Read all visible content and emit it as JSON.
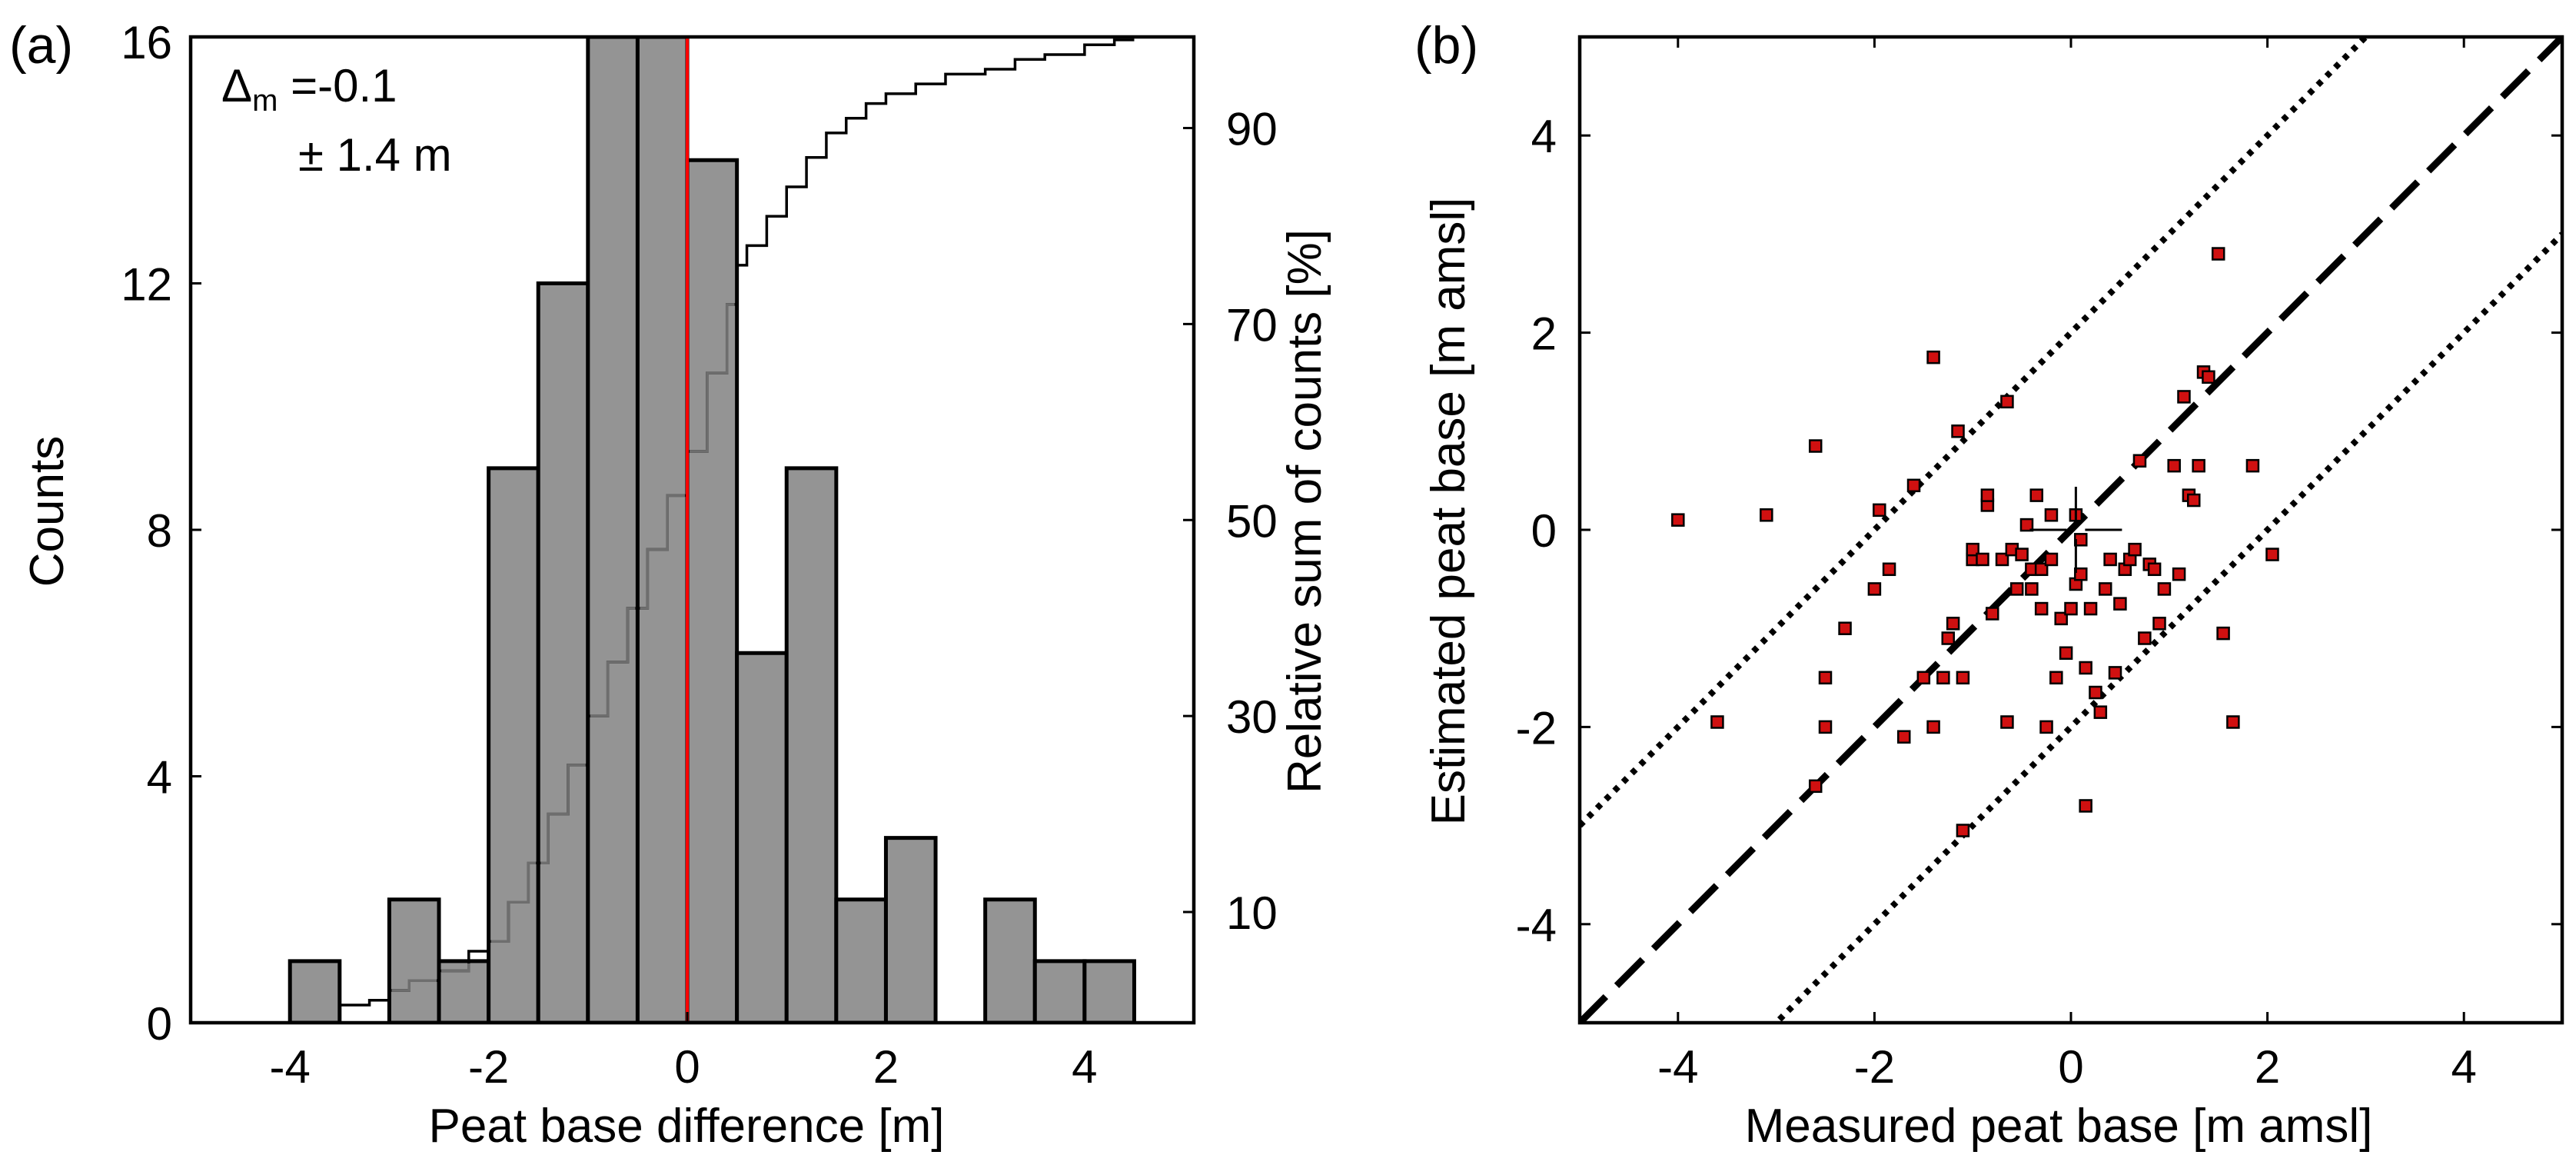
{
  "chart_data": [
    {
      "panel_label": "(a)",
      "type": "bar",
      "subtype": "histogram with cumulative step line",
      "xlabel": "Peat base difference [m]",
      "ylabel": "Counts",
      "y2label": "Relative sum of counts [%]",
      "xlim": [
        -5,
        5.1
      ],
      "ylim": [
        0,
        16
      ],
      "y2lim": [
        -1.3,
        99.3
      ],
      "xticks": [
        -4,
        -2,
        0,
        2,
        4
      ],
      "xtick_labels": [
        "-4",
        "-2",
        "0",
        "2",
        "4"
      ],
      "yticks": [
        0,
        4,
        8,
        12,
        16
      ],
      "ytick_labels": [
        "0",
        "4",
        "8",
        "12",
        "16"
      ],
      "y2ticks": [
        10,
        30,
        50,
        70,
        90
      ],
      "y2tick_labels": [
        "10",
        "30",
        "50",
        "70",
        "90"
      ],
      "bin_edges": [
        -4.0,
        -3.5,
        -3.0,
        -2.5,
        -2.0,
        -1.5,
        -1.0,
        -0.5,
        0.0,
        0.5,
        1.0,
        1.5,
        2.0,
        2.5,
        3.0,
        3.5,
        4.0,
        4.5
      ],
      "counts": [
        1,
        0,
        2,
        1,
        9,
        12,
        16,
        16,
        14,
        6,
        9,
        2,
        3,
        0,
        2,
        1,
        1
      ],
      "cumulative_percent": {
        "x": [
          -3.5,
          -3.2,
          -3.0,
          -2.8,
          -2.5,
          -2.2,
          -2.0,
          -1.8,
          -1.6,
          -1.4,
          -1.2,
          -1.0,
          -0.8,
          -0.6,
          -0.4,
          -0.2,
          0.0,
          0.2,
          0.4,
          0.5,
          0.6,
          0.8,
          1.0,
          1.2,
          1.4,
          1.6,
          1.8,
          2.0,
          2.3,
          2.6,
          3.0,
          3.3,
          3.6,
          4.0,
          4.3,
          4.5
        ],
        "y": [
          0.5,
          1.0,
          2.0,
          3.0,
          4.0,
          6.0,
          7.0,
          11.0,
          15.0,
          20.0,
          25.0,
          30.0,
          35.5,
          41.0,
          47.0,
          52.5,
          57.0,
          65.0,
          72.0,
          76.0,
          78.0,
          81.0,
          84.0,
          87.0,
          89.5,
          91.0,
          92.5,
          93.5,
          94.5,
          95.5,
          96.0,
          97.0,
          97.5,
          98.5,
          99.0,
          99.0
        ]
      },
      "reference_line": {
        "x": 0,
        "color": "#ff0000"
      },
      "annotation_line1_prefix": "Δ",
      "annotation_line1_subscript": "m",
      "annotation_line1_value": " =-0.1",
      "annotation_line2": "± 1.4 m",
      "bar_color": "#949494",
      "cumulative_color_inside_bars": "#6e6e6e",
      "cumulative_color_outside_bars": "#000000"
    },
    {
      "panel_label": "(b)",
      "type": "scatter",
      "xlabel": "Measured peat base [m amsl]",
      "ylabel": "Estimated peat base [m amsl]",
      "xlim": [
        -5,
        5
      ],
      "ylim": [
        -5,
        5
      ],
      "xticks": [
        -4,
        -2,
        0,
        2,
        4
      ],
      "xtick_labels": [
        "-4",
        "-2",
        "0",
        "2",
        "4"
      ],
      "yticks": [
        -4,
        -2,
        0,
        2,
        4
      ],
      "ytick_labels": [
        "-4",
        "-2",
        "0",
        "2",
        "4"
      ],
      "marker_color": "#d01010",
      "reference_lines": [
        {
          "kind": "1:1 line",
          "offset": 0,
          "style": "dashed"
        },
        {
          "kind": "upper bound",
          "offset": 2,
          "style": "dotted"
        },
        {
          "kind": "lower bound",
          "offset": -2,
          "style": "dotted"
        }
      ],
      "crosshair": {
        "x": 0.05,
        "y": 0.0
      },
      "points": [
        [
          -4.0,
          0.1
        ],
        [
          -3.1,
          0.15
        ],
        [
          -3.6,
          -1.95
        ],
        [
          -2.6,
          0.85
        ],
        [
          -2.6,
          -2.6
        ],
        [
          -2.5,
          -1.5
        ],
        [
          -2.5,
          -2.0
        ],
        [
          -2.3,
          -1.0
        ],
        [
          -2.0,
          -0.6
        ],
        [
          -1.95,
          0.2
        ],
        [
          -1.85,
          -0.4
        ],
        [
          -1.7,
          -2.1
        ],
        [
          -1.6,
          0.45
        ],
        [
          -1.5,
          -1.5
        ],
        [
          -1.4,
          1.75
        ],
        [
          -1.4,
          -2.0
        ],
        [
          -1.3,
          -1.5
        ],
        [
          -1.25,
          -1.1
        ],
        [
          -1.2,
          -0.95
        ],
        [
          -1.15,
          1.0
        ],
        [
          -1.1,
          -1.5
        ],
        [
          -1.1,
          -3.05
        ],
        [
          -1.0,
          -0.3
        ],
        [
          -1.0,
          -0.2
        ],
        [
          -0.9,
          -0.3
        ],
        [
          -0.85,
          0.25
        ],
        [
          -0.85,
          0.35
        ],
        [
          -0.8,
          -0.85
        ],
        [
          -0.7,
          -0.3
        ],
        [
          -0.65,
          1.3
        ],
        [
          -0.65,
          -1.95
        ],
        [
          -0.6,
          -0.2
        ],
        [
          -0.55,
          -0.6
        ],
        [
          -0.5,
          -0.25
        ],
        [
          -0.45,
          0.05
        ],
        [
          -0.4,
          -0.4
        ],
        [
          -0.4,
          -0.6
        ],
        [
          -0.35,
          0.35
        ],
        [
          -0.3,
          -0.4
        ],
        [
          -0.3,
          -0.8
        ],
        [
          -0.25,
          -2.0
        ],
        [
          -0.2,
          -0.3
        ],
        [
          -0.2,
          0.15
        ],
        [
          -0.15,
          -1.5
        ],
        [
          -0.1,
          -0.9
        ],
        [
          -0.05,
          -1.25
        ],
        [
          0.0,
          -0.8
        ],
        [
          0.05,
          -0.55
        ],
        [
          0.05,
          0.15
        ],
        [
          0.1,
          -0.1
        ],
        [
          0.1,
          -0.45
        ],
        [
          0.15,
          -2.8
        ],
        [
          0.15,
          -1.4
        ],
        [
          0.2,
          -0.8
        ],
        [
          0.25,
          -1.65
        ],
        [
          0.3,
          -1.85
        ],
        [
          0.35,
          -0.6
        ],
        [
          0.4,
          -0.3
        ],
        [
          0.45,
          -1.45
        ],
        [
          0.5,
          -0.75
        ],
        [
          0.55,
          -0.4
        ],
        [
          0.6,
          -0.3
        ],
        [
          0.65,
          -0.2
        ],
        [
          0.7,
          0.7
        ],
        [
          0.75,
          -1.1
        ],
        [
          0.8,
          -0.35
        ],
        [
          0.85,
          -0.4
        ],
        [
          0.9,
          -0.95
        ],
        [
          0.95,
          -0.6
        ],
        [
          1.05,
          0.65
        ],
        [
          1.1,
          -0.45
        ],
        [
          1.15,
          1.35
        ],
        [
          1.2,
          0.35
        ],
        [
          1.25,
          0.3
        ],
        [
          1.3,
          0.65
        ],
        [
          1.35,
          1.6
        ],
        [
          1.4,
          1.55
        ],
        [
          1.5,
          2.8
        ],
        [
          1.55,
          -1.05
        ],
        [
          1.65,
          -1.95
        ],
        [
          1.85,
          0.65
        ],
        [
          2.05,
          -0.25
        ]
      ]
    }
  ]
}
